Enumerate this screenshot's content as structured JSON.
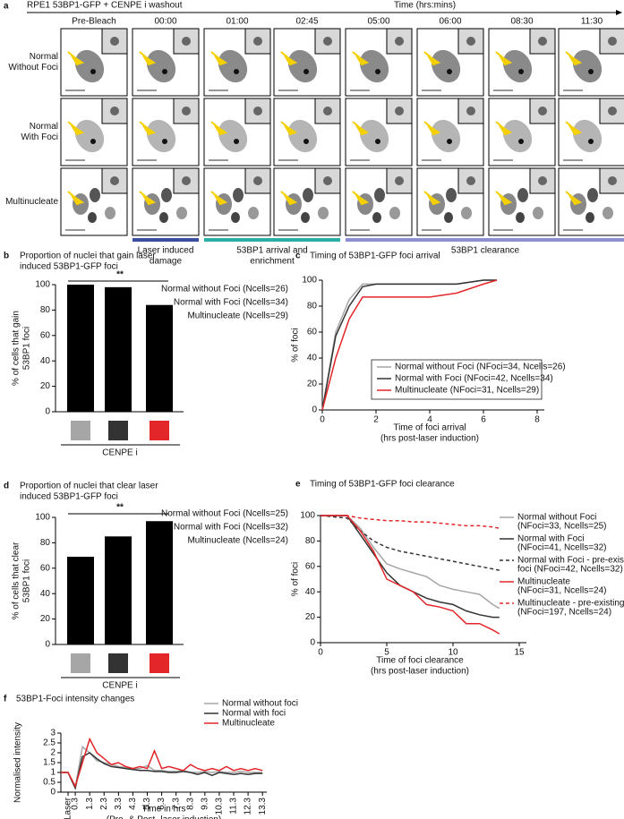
{
  "panel_a": {
    "label": "a",
    "title": "RPE1 53BP1-GFP + CENPE i washout",
    "time_label": "Time (hrs:mins)",
    "timepoints": [
      "Pre-Bleach",
      "00:00",
      "01:00",
      "02:45",
      "05:00",
      "06:00",
      "08:30",
      "11:30"
    ],
    "rows": [
      [
        "Normal",
        "Without Foci"
      ],
      [
        "Normal",
        "With Foci"
      ],
      [
        "Multinucleate"
      ]
    ],
    "phases": [
      {
        "label": [
          "Laser induced",
          "damage"
        ],
        "color": "#3b4ea0"
      },
      {
        "label": [
          "53BP1 arrival and",
          "enrichment"
        ],
        "color": "#2aaea6"
      },
      {
        "label": [
          "53BP1 clearance"
        ],
        "color": "#8c8fd2"
      }
    ]
  },
  "chart_data": [
    {
      "type": "bar",
      "label": "b",
      "title": [
        "Proportion of nuclei that gain laser",
        "induced 53BP1-GFP foci"
      ],
      "ylabel": [
        "% of cells that gain",
        "53BP1 foci"
      ],
      "xlabel": "CENPE i",
      "significance": "**",
      "bar_color": "#000000",
      "series": [
        {
          "name": "Normal without Foci (Ncells=26)",
          "color": "#a6a6a6",
          "values": [
            100
          ]
        },
        {
          "name": "Normal with Foci (Ncells=34)",
          "color": "#333333",
          "values": [
            98
          ]
        },
        {
          "name": "Multinucleate (Ncells=29)",
          "color": "#e3262a",
          "values": [
            84
          ]
        }
      ],
      "ylim": [
        0,
        100
      ],
      "yticks": [
        0,
        20,
        40,
        60,
        80,
        100
      ]
    },
    {
      "type": "line",
      "label": "c",
      "title": [
        "Timing of 53BP1-GFP foci arrival"
      ],
      "ylabel": [
        "% of foci"
      ],
      "xlabel": [
        "Time of foci arrival",
        "(hrs post-laser induction)"
      ],
      "x": [
        0,
        0.5,
        1,
        1.5,
        2,
        3,
        4,
        5,
        6,
        6.5
      ],
      "series": [
        {
          "name": [
            "Normal without Foci (NFoci=34, Ncells=26)"
          ],
          "color": "#a6a6a6",
          "dashed": false,
          "values": [
            0,
            60,
            85,
            97,
            97,
            97,
            97,
            97,
            100,
            100
          ]
        },
        {
          "name": [
            "Normal with Foci (NFoci=42, Ncells=34)"
          ],
          "color": "#333333",
          "dashed": false,
          "values": [
            0,
            57,
            80,
            95,
            97,
            97,
            97,
            97,
            100,
            100
          ]
        },
        {
          "name": [
            "Multinucleate  (NFoci=31, Ncells=29)"
          ],
          "color": "#e3262a",
          "dashed": false,
          "values": [
            0,
            40,
            70,
            87,
            87,
            87,
            87,
            90,
            97,
            100
          ]
        }
      ],
      "xlim": [
        0,
        8
      ],
      "xticks": [
        0,
        2,
        4,
        6,
        8
      ],
      "ylim": [
        0,
        100
      ],
      "yticks": [
        0,
        20,
        40,
        60,
        80,
        100
      ]
    },
    {
      "type": "bar",
      "label": "d",
      "title": [
        "Proportion of nuclei that clear laser",
        "induced 53BP1-GFP foci"
      ],
      "ylabel": [
        "% of cells that clear",
        "53BP1 foci"
      ],
      "xlabel": "CENPE i",
      "significance": "**",
      "bar_color": "#000000",
      "series": [
        {
          "name": "Normal without Foci (Ncells=25)",
          "color": "#a6a6a6",
          "values": [
            69
          ]
        },
        {
          "name": "Normal with Foci (Ncells=32)",
          "color": "#333333",
          "values": [
            85
          ]
        },
        {
          "name": "Multinucleate (Ncells=24)",
          "color": "#e3262a",
          "values": [
            97
          ]
        }
      ],
      "ylim": [
        0,
        100
      ],
      "yticks": [
        0,
        20,
        40,
        60,
        80,
        100
      ]
    },
    {
      "type": "line",
      "label": "e",
      "title": [
        "Timing of 53BP1-GFP foci clearance"
      ],
      "ylabel": [
        "% of foci"
      ],
      "xlabel": [
        "Time of foci clearance",
        "(hrs post-laser induction)"
      ],
      "x": [
        0,
        2,
        3,
        4,
        5,
        6,
        7,
        8,
        9,
        10,
        11,
        12,
        13,
        13.5
      ],
      "series": [
        {
          "name": [
            "Normal without Foci",
            "(NFoci=33, Ncells=25)"
          ],
          "color": "#a6a6a6",
          "dashed": false,
          "values": [
            100,
            100,
            90,
            75,
            62,
            58,
            55,
            52,
            45,
            42,
            40,
            38,
            30,
            27
          ]
        },
        {
          "name": [
            "Normal with Foci",
            "(NFoci=41, Ncells=32)"
          ],
          "color": "#333333",
          "dashed": false,
          "values": [
            100,
            100,
            85,
            70,
            55,
            45,
            40,
            35,
            32,
            30,
            25,
            22,
            20,
            20
          ]
        },
        {
          "name": [
            "Normal with Foci - pre-existing",
            "foci (NFoci=42, Ncells=32)"
          ],
          "color": "#333333",
          "dashed": true,
          "values": [
            100,
            98,
            88,
            80,
            75,
            72,
            70,
            68,
            66,
            64,
            62,
            60,
            58,
            57
          ]
        },
        {
          "name": [
            "Multinucleate",
            "(NFoci=31, Ncells=24)"
          ],
          "color": "#e3262a",
          "dashed": false,
          "values": [
            100,
            100,
            88,
            72,
            50,
            45,
            40,
            30,
            28,
            25,
            15,
            15,
            10,
            7
          ]
        },
        {
          "name": [
            "Multinucleate - pre-existing foci",
            "(NFoci=197, Ncells=24)"
          ],
          "color": "#e3262a",
          "dashed": true,
          "values": [
            100,
            100,
            98,
            97,
            96,
            96,
            95,
            95,
            94,
            93,
            92,
            92,
            91,
            90
          ]
        }
      ],
      "xlim": [
        0,
        15
      ],
      "xticks": [
        0,
        5,
        10,
        15
      ],
      "ylim": [
        0,
        100
      ],
      "yticks": [
        0,
        20,
        40,
        60,
        80,
        100
      ]
    },
    {
      "type": "line",
      "label": "f",
      "title": [
        "53BP1-Foci intensity changes"
      ],
      "ylabel": [
        "Normalised intensity"
      ],
      "xlabel": [
        "Time in hrs",
        "(Pre- & Post- laser induction)"
      ],
      "x": [
        -0.7,
        -0.2,
        0.3,
        0.8,
        1.3,
        1.8,
        2.3,
        2.8,
        3.3,
        3.8,
        4.3,
        4.8,
        5.3,
        5.8,
        6.3,
        6.8,
        7.3,
        7.8,
        8.3,
        8.8,
        9.3,
        9.8,
        10.3,
        10.8,
        11.3,
        11.8,
        12.3,
        12.8,
        13.3
      ],
      "series": [
        {
          "name": [
            "Normal without foci"
          ],
          "color": "#a6a6a6",
          "dashed": false,
          "values": [
            1,
            1,
            0.25,
            2.3,
            2.0,
            1.6,
            1.5,
            1.4,
            1.3,
            1.25,
            1.2,
            1.2,
            1.35,
            1.1,
            1.1,
            1.05,
            1.05,
            1.1,
            1.0,
            1.0,
            1.05,
            1.0,
            1.05,
            1.0,
            1.0,
            1.05,
            1.0,
            1.0,
            1.0
          ]
        },
        {
          "name": [
            "Normal with foci"
          ],
          "color": "#333333",
          "dashed": false,
          "values": [
            1,
            1,
            0.2,
            1.8,
            2.0,
            1.7,
            1.45,
            1.3,
            1.25,
            1.2,
            1.15,
            1.1,
            1.1,
            1.05,
            1.05,
            1.0,
            1.0,
            1.05,
            1.0,
            0.9,
            1.0,
            0.85,
            1.0,
            0.95,
            0.9,
            0.95,
            0.9,
            0.95,
            0.95
          ]
        },
        {
          "name": [
            "Multinucleate"
          ],
          "color": "#e3262a",
          "dashed": false,
          "values": [
            1,
            1,
            0.3,
            1.5,
            2.7,
            2.0,
            1.7,
            1.4,
            1.5,
            1.3,
            1.2,
            1.3,
            1.2,
            2.1,
            1.2,
            1.3,
            1.2,
            1.1,
            1.4,
            1.2,
            1.1,
            1.2,
            1.1,
            1.3,
            1.1,
            1.2,
            1.1,
            1.2,
            1.1
          ]
        }
      ],
      "xlim": [
        -0.7,
        13.6
      ],
      "xticks": [
        {
          "value": -0.2,
          "label": "Laser"
        },
        0.3,
        1.3,
        2.3,
        3.3,
        4.3,
        5.3,
        6.3,
        7.3,
        8.3,
        9.3,
        10.3,
        11.3,
        12.3,
        13.3
      ],
      "ylim": [
        0,
        3
      ],
      "yticks": [
        0,
        0.5,
        1,
        1.5,
        2,
        2.5,
        3
      ]
    }
  ]
}
